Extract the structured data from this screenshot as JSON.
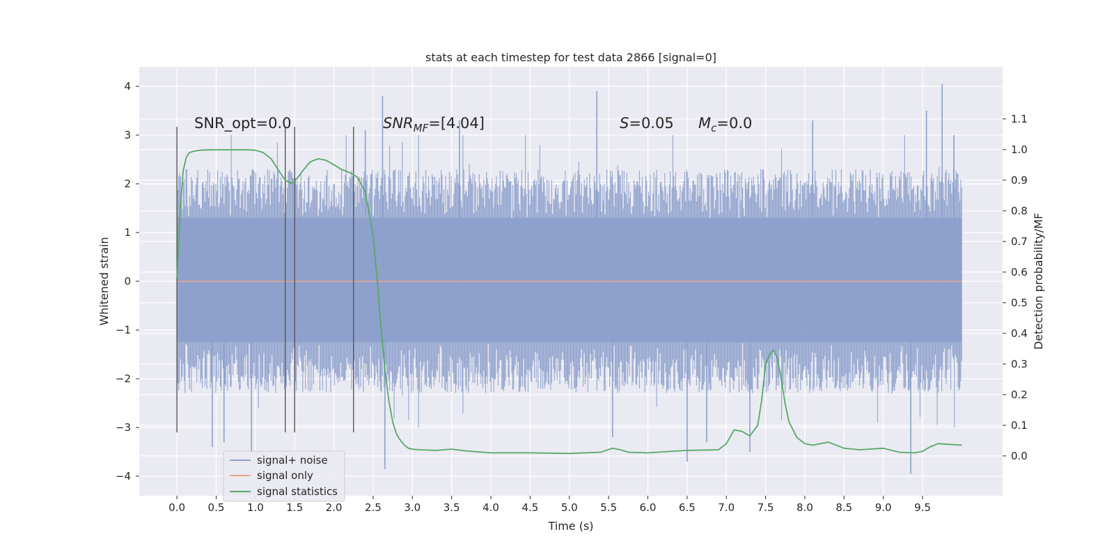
{
  "chart_data": {
    "type": "line",
    "title": "stats at each timestep for test data 2866 [signal=0]",
    "xlabel": "Time (s)",
    "ylabel": "Whitened strain",
    "y2label": "Detection probability/MF",
    "xlim": [
      -0.48,
      10.52
    ],
    "ylim": [
      -4.4,
      4.4
    ],
    "y2lim": [
      -0.13,
      1.27
    ],
    "x_ticks": [
      0.0,
      0.5,
      1.0,
      1.5,
      2.0,
      2.5,
      3.0,
      3.5,
      4.0,
      4.5,
      5.0,
      5.5,
      6.0,
      6.5,
      7.0,
      7.5,
      8.0,
      8.5,
      9.0,
      9.5
    ],
    "x_tick_labels": [
      "0.0",
      "0.5",
      "1.0",
      "1.5",
      "2.0",
      "2.5",
      "3.0",
      "3.5",
      "4.0",
      "4.5",
      "5.0",
      "5.5",
      "6.0",
      "6.5",
      "7.0",
      "7.5",
      "8.0",
      "8.5",
      "9.0",
      "9.5"
    ],
    "y_ticks": [
      -4,
      -3,
      -2,
      -1,
      0,
      1,
      2,
      3,
      4
    ],
    "y_tick_labels": [
      "−4",
      "−3",
      "−2",
      "−1",
      "0",
      "1",
      "2",
      "3",
      "4"
    ],
    "y2_ticks": [
      0.0,
      0.1,
      0.2,
      0.3,
      0.4,
      0.5,
      0.6,
      0.7,
      0.8,
      0.9,
      1.0,
      1.1
    ],
    "y2_tick_labels": [
      "0.0",
      "0.1",
      "0.2",
      "0.3",
      "0.4",
      "0.5",
      "0.6",
      "0.7",
      "0.8",
      "0.9",
      "1.0",
      "1.1"
    ],
    "grid": true,
    "legend_position": "lower-left",
    "legend": [
      {
        "label": "signal+ noise",
        "color": "#8da0cb"
      },
      {
        "label": "signal only",
        "color": "#e8a68a"
      },
      {
        "label": "signal statistics",
        "color": "#55a868"
      }
    ],
    "annotations": {
      "snr_opt": "SNR_opt=0.0",
      "snr_mf_var": "SNR",
      "snr_mf_sub": "MF",
      "snr_mf_val": "=[4.04]",
      "s_var": "S",
      "s_val": "=0.05",
      "mc_var": "M",
      "mc_sub": "c",
      "mc_val": "=0.0"
    },
    "vertical_lines_x": [
      0.0,
      1.38,
      1.5,
      2.25
    ],
    "vertical_lines_yrange": [
      -3.1,
      3.17
    ],
    "series": [
      {
        "name": "signal+ noise",
        "color": "#8da0cb",
        "x_range": [
          0.0,
          10.0
        ],
        "band_core": [
          -1.25,
          1.3
        ],
        "typical_range": [
          -2.3,
          2.3
        ],
        "spikes": [
          {
            "x": 0.45,
            "y": -3.4
          },
          {
            "x": 0.6,
            "y": -3.3
          },
          {
            "x": 0.95,
            "y": -3.5
          },
          {
            "x": 2.4,
            "y": 3.1
          },
          {
            "x": 2.62,
            "y": 3.8
          },
          {
            "x": 2.65,
            "y": -3.85
          },
          {
            "x": 3.6,
            "y": 3.3
          },
          {
            "x": 5.35,
            "y": 3.9
          },
          {
            "x": 5.55,
            "y": -3.2
          },
          {
            "x": 6.5,
            "y": -3.7
          },
          {
            "x": 6.75,
            "y": -3.3
          },
          {
            "x": 7.3,
            "y": -3.5
          },
          {
            "x": 8.1,
            "y": 3.3
          },
          {
            "x": 9.35,
            "y": -3.95
          },
          {
            "x": 9.55,
            "y": 3.5
          },
          {
            "x": 9.75,
            "y": 4.05
          },
          {
            "x": 9.9,
            "y": 3.0
          }
        ]
      },
      {
        "name": "signal only",
        "color": "#e8a68a",
        "x": [
          0.0,
          10.0
        ],
        "y": [
          0.0,
          0.0
        ]
      },
      {
        "name": "signal statistics",
        "color": "#55a868",
        "axis": "right",
        "x": [
          0.0,
          0.04,
          0.08,
          0.12,
          0.16,
          0.22,
          0.3,
          0.4,
          0.5,
          0.6,
          0.7,
          0.8,
          0.9,
          1.0,
          1.1,
          1.2,
          1.3,
          1.38,
          1.45,
          1.5,
          1.6,
          1.7,
          1.8,
          1.9,
          2.0,
          2.1,
          2.2,
          2.3,
          2.4,
          2.5,
          2.55,
          2.6,
          2.65,
          2.7,
          2.75,
          2.8,
          2.85,
          2.9,
          2.95,
          3.0,
          3.1,
          3.3,
          3.5,
          3.7,
          4.0,
          4.5,
          5.0,
          5.4,
          5.55,
          5.65,
          5.75,
          6.0,
          6.5,
          6.9,
          7.0,
          7.1,
          7.2,
          7.3,
          7.4,
          7.45,
          7.5,
          7.55,
          7.6,
          7.65,
          7.7,
          7.75,
          7.8,
          7.9,
          8.0,
          8.1,
          8.3,
          8.5,
          8.7,
          9.0,
          9.2,
          9.4,
          9.5,
          9.6,
          9.7,
          10.0
        ],
        "y": [
          0.58,
          0.8,
          0.93,
          0.975,
          0.99,
          0.995,
          0.998,
          0.999,
          0.999,
          0.999,
          0.999,
          0.999,
          0.999,
          0.998,
          0.99,
          0.97,
          0.93,
          0.9,
          0.89,
          0.895,
          0.93,
          0.96,
          0.97,
          0.965,
          0.95,
          0.935,
          0.925,
          0.91,
          0.86,
          0.72,
          0.58,
          0.42,
          0.28,
          0.18,
          0.11,
          0.07,
          0.05,
          0.035,
          0.025,
          0.022,
          0.02,
          0.018,
          0.022,
          0.016,
          0.01,
          0.01,
          0.008,
          0.012,
          0.025,
          0.02,
          0.012,
          0.01,
          0.018,
          0.02,
          0.04,
          0.085,
          0.08,
          0.065,
          0.1,
          0.18,
          0.3,
          0.33,
          0.345,
          0.32,
          0.25,
          0.17,
          0.11,
          0.06,
          0.04,
          0.035,
          0.045,
          0.025,
          0.02,
          0.025,
          0.012,
          0.01,
          0.015,
          0.03,
          0.04,
          0.035
        ]
      }
    ]
  }
}
